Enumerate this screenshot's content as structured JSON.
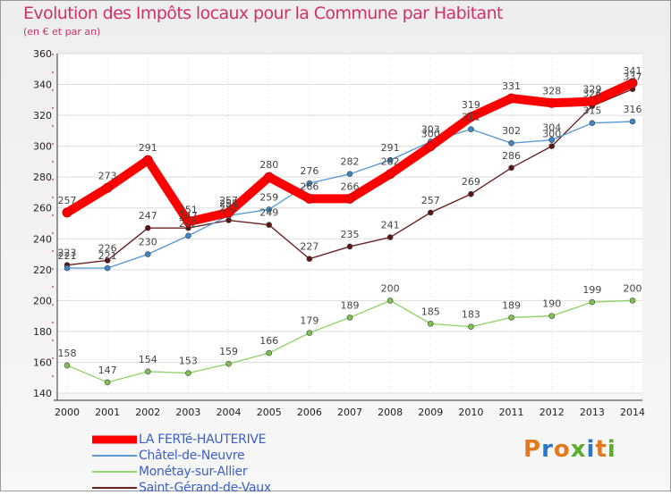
{
  "title": "Evolution des Impôts locaux pour la Commune par Habitant",
  "subtitle": "(en € et par an)",
  "logo": {
    "text": "Proxiti",
    "colors": [
      "#e07a1e",
      "#2a77c9",
      "#e07a1e",
      "#5aae2a",
      "#2a77c9",
      "#e07a1e",
      "#5aae2a"
    ]
  },
  "chart_data": {
    "type": "line",
    "title": "Evolution des Impôts locaux pour la Commune par Habitant",
    "subtitle": "(en € et par an)",
    "xlabel": "",
    "ylabel": "",
    "categories": [
      "2000",
      "2001",
      "2002",
      "2003",
      "2004",
      "2005",
      "2006",
      "2007",
      "2008",
      "2009",
      "2010",
      "2011",
      "2012",
      "2013",
      "2014"
    ],
    "yticks": [
      140,
      160,
      180,
      200,
      220,
      240,
      260,
      280,
      300,
      320,
      340,
      360
    ],
    "ylim": [
      140,
      360
    ],
    "grid": true,
    "legend_position": "bottom-left",
    "series": [
      {
        "name": "Châtel-de-Neuvre",
        "color": "#5b9bd5",
        "marker": "#3e86c8",
        "values": [
          221,
          221,
          230,
          242,
          255,
          259,
          276,
          282,
          291,
          303,
          311,
          302,
          304,
          315,
          316
        ]
      },
      {
        "name": "Saint-Gérand-de-Vaux",
        "color": "#6b2222",
        "marker": "#5a1515",
        "values": [
          223,
          226,
          247,
          247,
          252,
          249,
          227,
          235,
          241,
          257,
          269,
          286,
          300,
          326,
          337
        ]
      },
      {
        "name": "Monétay-sur-Allier",
        "color": "#94d46c",
        "marker": "#7dc24e",
        "values": [
          158,
          147,
          154,
          153,
          159,
          166,
          179,
          189,
          200,
          185,
          183,
          189,
          190,
          199,
          200
        ]
      },
      {
        "name": "LA FERTé-HAUTERIVE",
        "color": "#ff0000",
        "marker": "#ff0000",
        "values": [
          257,
          273,
          291,
          251,
          257,
          280,
          266,
          266,
          282,
          300,
          319,
          331,
          328,
          329,
          341
        ]
      }
    ],
    "legend_order": [
      "LA FERTé-HAUTERIVE",
      "Châtel-de-Neuvre",
      "Monétay-sur-Allier",
      "Saint-Gérand-de-Vaux"
    ]
  }
}
